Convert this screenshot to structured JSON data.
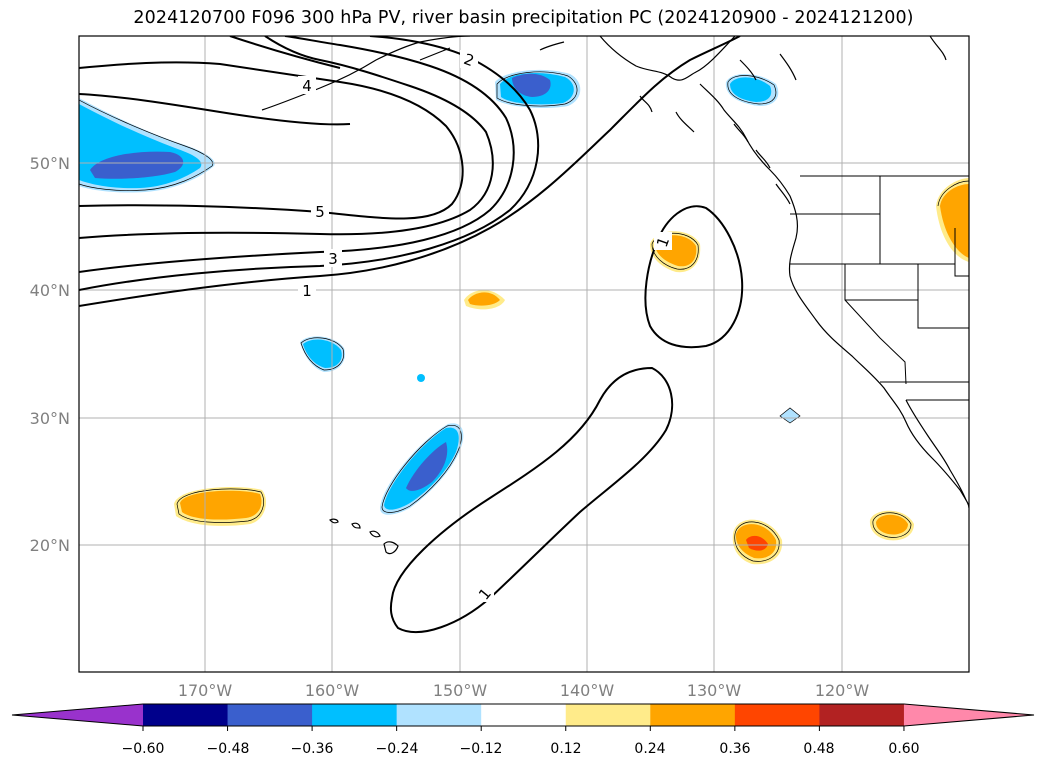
{
  "title": "2024120700 F096 300 hPa PV, river basin precipitation PC (2024120900 - 2024121200)",
  "lat_ticks": [
    "50°N",
    "40°N",
    "30°N",
    "20°N"
  ],
  "lon_ticks": [
    "170°W",
    "160°W",
    "150°W",
    "140°W",
    "130°W",
    "120°W"
  ],
  "contour_labels": [
    "4",
    "2",
    "5",
    "3",
    "1",
    "1",
    "1"
  ],
  "colorbar": {
    "ticks": [
      "−0.60",
      "−0.48",
      "−0.36",
      "−0.24",
      "−0.12",
      "0.12",
      "0.24",
      "0.36",
      "0.48",
      "0.60"
    ],
    "colors": [
      "#9932cc",
      "#00008b",
      "#3a5fcd",
      "#00bfff",
      "#b0e2ff",
      "#ffffff",
      "#ffeb8a",
      "#ffa500",
      "#ff4500",
      "#b22222",
      "#ff88aa"
    ]
  }
}
